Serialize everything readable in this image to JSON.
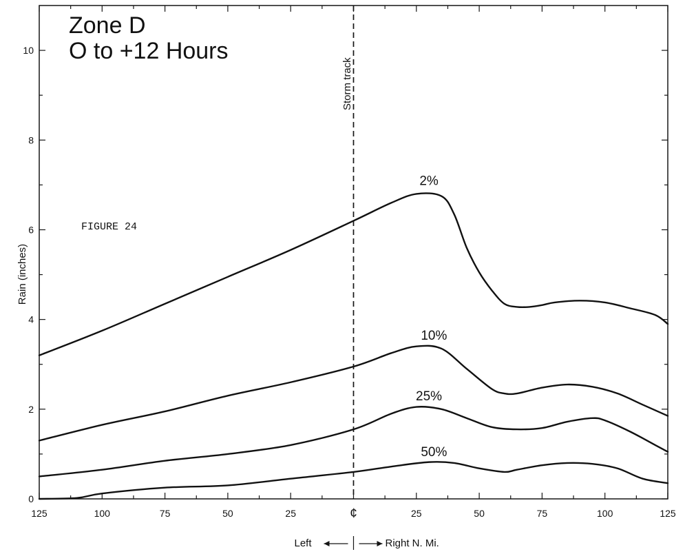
{
  "chart_data": {
    "type": "line",
    "title_lines": [
      "Zone  D",
      "O to +12  Hours"
    ],
    "figure_label": "FIGURE 24",
    "ylabel": "Rain  (inches)",
    "xlabel_left": "Left",
    "xlabel_right": "Right  N. Mi.",
    "storm_track_label": "Storm  track",
    "center_label": "¢",
    "xlim": [
      -125,
      125
    ],
    "ylim": [
      0,
      11
    ],
    "x_tick_labels": [
      {
        "x": -125,
        "label": "125"
      },
      {
        "x": -100,
        "label": "100"
      },
      {
        "x": -75,
        "label": "75"
      },
      {
        "x": -50,
        "label": "50"
      },
      {
        "x": -25,
        "label": "25"
      },
      {
        "x": 25,
        "label": "25"
      },
      {
        "x": 50,
        "label": "50"
      },
      {
        "x": 75,
        "label": "75"
      },
      {
        "x": 100,
        "label": "100"
      },
      {
        "x": 125,
        "label": "125"
      }
    ],
    "y_tick_labels": [
      {
        "y": 0,
        "label": "0"
      },
      {
        "y": 2,
        "label": "2"
      },
      {
        "y": 4,
        "label": "4"
      },
      {
        "y": 6,
        "label": "6"
      },
      {
        "y": 8,
        "label": "8"
      },
      {
        "y": 10,
        "label": "10"
      }
    ],
    "series": [
      {
        "name": "2%",
        "label_at": [
          30,
          7.0
        ],
        "x": [
          -125,
          -100,
          -75,
          -50,
          -25,
          0,
          15,
          25,
          35,
          40,
          45,
          50,
          55,
          60,
          65,
          70,
          75,
          80,
          90,
          100,
          110,
          120,
          125
        ],
        "y": [
          3.2,
          3.75,
          4.35,
          4.95,
          5.55,
          6.2,
          6.6,
          6.8,
          6.75,
          6.35,
          5.6,
          5.05,
          4.65,
          4.35,
          4.28,
          4.28,
          4.32,
          4.38,
          4.42,
          4.38,
          4.25,
          4.1,
          3.9
        ]
      },
      {
        "name": "10%",
        "label_at": [
          32,
          3.55
        ],
        "x": [
          -125,
          -100,
          -75,
          -50,
          -25,
          0,
          15,
          25,
          35,
          45,
          55,
          60,
          65,
          75,
          85,
          95,
          105,
          115,
          125
        ],
        "y": [
          1.3,
          1.65,
          1.95,
          2.3,
          2.6,
          2.95,
          3.25,
          3.4,
          3.35,
          2.9,
          2.45,
          2.35,
          2.35,
          2.48,
          2.55,
          2.5,
          2.35,
          2.1,
          1.85
        ]
      },
      {
        "name": "25%",
        "label_at": [
          30,
          2.2
        ],
        "x": [
          -125,
          -100,
          -75,
          -50,
          -25,
          0,
          15,
          25,
          35,
          45,
          55,
          65,
          75,
          85,
          95,
          100,
          110,
          120,
          125
        ],
        "y": [
          0.5,
          0.65,
          0.85,
          1.0,
          1.2,
          1.55,
          1.9,
          2.05,
          2.0,
          1.8,
          1.6,
          1.55,
          1.58,
          1.72,
          1.8,
          1.75,
          1.5,
          1.2,
          1.05
        ]
      },
      {
        "name": "50%",
        "label_at": [
          32,
          0.95
        ],
        "x": [
          -125,
          -110,
          -100,
          -75,
          -50,
          -25,
          0,
          15,
          30,
          40,
          50,
          60,
          65,
          75,
          85,
          95,
          105,
          115,
          125
        ],
        "y": [
          0.0,
          0.02,
          0.12,
          0.25,
          0.3,
          0.45,
          0.6,
          0.72,
          0.82,
          0.8,
          0.68,
          0.6,
          0.65,
          0.75,
          0.8,
          0.78,
          0.68,
          0.45,
          0.35
        ]
      }
    ]
  }
}
